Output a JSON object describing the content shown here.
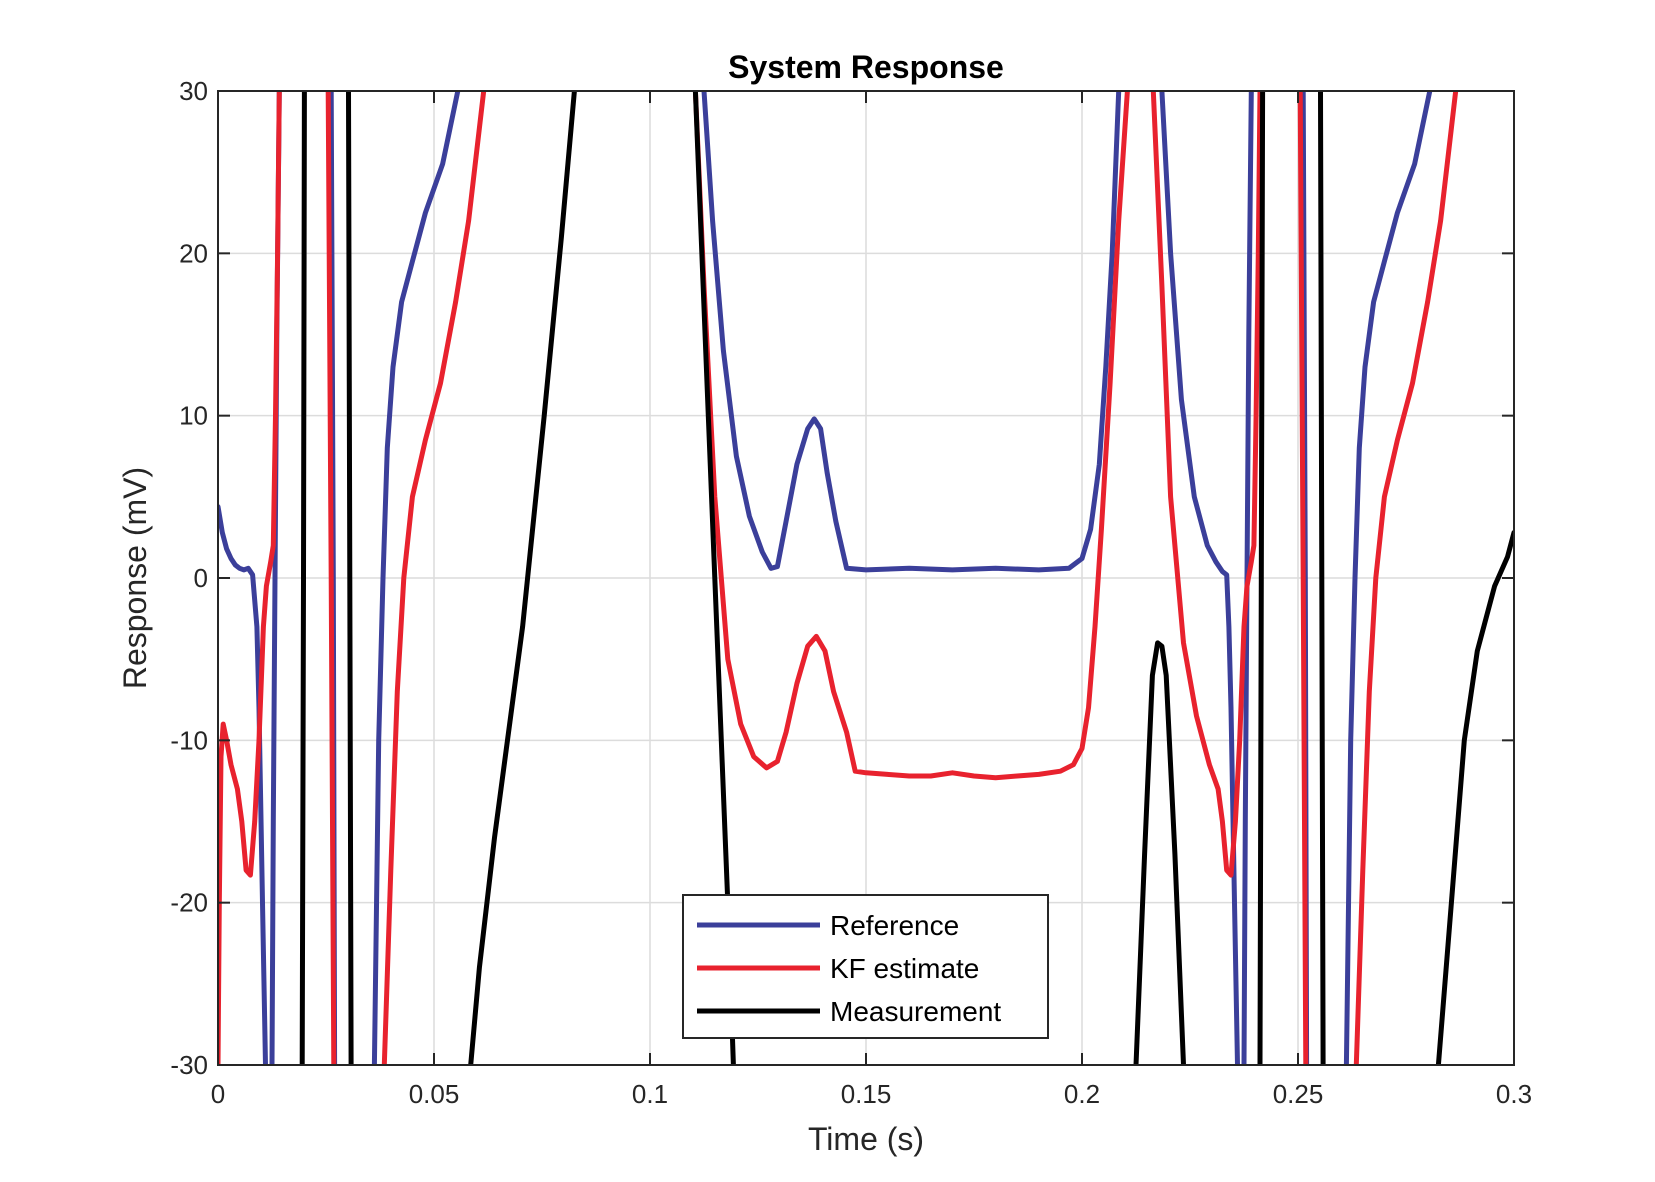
{
  "chart_data": {
    "type": "line",
    "title": "System Response",
    "xlabel": "Time (s)",
    "ylabel": "Response (mV)",
    "xlim": [
      0,
      0.3
    ],
    "ylim": [
      -30,
      30
    ],
    "xticks": [
      0,
      0.05,
      0.1,
      0.15,
      0.2,
      0.25,
      0.3
    ],
    "yticks": [
      -30,
      -20,
      -10,
      0,
      10,
      20,
      30
    ],
    "xtick_labels": [
      "0",
      "0.05",
      "0.1",
      "0.15",
      "0.2",
      "0.25",
      "0.3"
    ],
    "ytick_labels": [
      "-30",
      "-20",
      "-10",
      "0",
      "10",
      "20",
      "30"
    ],
    "grid": true,
    "legend_position": "bottom-center",
    "series": [
      {
        "name": "Reference",
        "color": "#3b3f9a",
        "points": [
          [
            0,
            4.4
          ],
          [
            0.001,
            2.8
          ],
          [
            0.002,
            1.8
          ],
          [
            0.003,
            1.2
          ],
          [
            0.004,
            0.8
          ],
          [
            0.005,
            0.6
          ],
          [
            0.006,
            0.5
          ],
          [
            0.007,
            0.6
          ],
          [
            0.008,
            0.2
          ],
          [
            0.009,
            -3
          ],
          [
            0.0095,
            -8
          ],
          [
            0.0103,
            -20
          ],
          [
            0.011,
            -30
          ],
          [
            0.011,
            -40
          ],
          [
            0.0125,
            -40
          ],
          [
            0.0125,
            -30
          ],
          [
            0.0128,
            -15
          ],
          [
            0.0132,
            0
          ],
          [
            0.0136,
            15
          ],
          [
            0.0142,
            30
          ],
          [
            0.0142,
            40
          ],
          [
            0.0262,
            40
          ],
          [
            0.0262,
            30
          ],
          [
            0.0267,
            0
          ],
          [
            0.027,
            -30
          ],
          [
            0.027,
            -40
          ],
          [
            0.0362,
            -40
          ],
          [
            0.0362,
            -30
          ],
          [
            0.0372,
            -10
          ],
          [
            0.0382,
            0
          ],
          [
            0.0392,
            8
          ],
          [
            0.0405,
            13
          ],
          [
            0.0425,
            17
          ],
          [
            0.045,
            19.5
          ],
          [
            0.048,
            22.5
          ],
          [
            0.052,
            25.5
          ],
          [
            0.0555,
            30
          ],
          [
            0.0555,
            40
          ],
          [
            0.1125,
            40
          ],
          [
            0.1125,
            30
          ],
          [
            0.1145,
            22
          ],
          [
            0.117,
            14
          ],
          [
            0.12,
            7.5
          ],
          [
            0.123,
            3.8
          ],
          [
            0.126,
            1.6
          ],
          [
            0.128,
            0.6
          ],
          [
            0.1295,
            0.7
          ],
          [
            0.1315,
            3.5
          ],
          [
            0.134,
            7
          ],
          [
            0.1365,
            9.2
          ],
          [
            0.138,
            9.8
          ],
          [
            0.1395,
            9.2
          ],
          [
            0.141,
            6.5
          ],
          [
            0.143,
            3.5
          ],
          [
            0.1455,
            0.6
          ],
          [
            0.15,
            0.5
          ],
          [
            0.16,
            0.6
          ],
          [
            0.17,
            0.5
          ],
          [
            0.18,
            0.6
          ],
          [
            0.19,
            0.5
          ],
          [
            0.197,
            0.6
          ],
          [
            0.2,
            1.2
          ],
          [
            0.202,
            3
          ],
          [
            0.204,
            7
          ],
          [
            0.2055,
            13
          ],
          [
            0.207,
            20
          ],
          [
            0.2085,
            30
          ],
          [
            0.2085,
            40
          ],
          [
            0.2185,
            40
          ],
          [
            0.2185,
            30
          ],
          [
            0.2205,
            20
          ],
          [
            0.223,
            11
          ],
          [
            0.226,
            5
          ],
          [
            0.229,
            2
          ],
          [
            0.231,
            1
          ],
          [
            0.2325,
            0.4
          ],
          [
            0.2335,
            0.2
          ],
          [
            0.234,
            -3
          ],
          [
            0.2345,
            -8
          ],
          [
            0.2353,
            -20
          ],
          [
            0.236,
            -30
          ],
          [
            0.236,
            -40
          ],
          [
            0.2375,
            -40
          ],
          [
            0.2375,
            -30
          ],
          [
            0.2378,
            -15
          ],
          [
            0.2382,
            0
          ],
          [
            0.2386,
            15
          ],
          [
            0.2392,
            30
          ],
          [
            0.2392,
            40
          ],
          [
            0.2512,
            40
          ],
          [
            0.2512,
            30
          ],
          [
            0.2517,
            0
          ],
          [
            0.252,
            -30
          ],
          [
            0.252,
            -40
          ],
          [
            0.2612,
            -40
          ],
          [
            0.2612,
            -30
          ],
          [
            0.2622,
            -10
          ],
          [
            0.2632,
            0
          ],
          [
            0.2642,
            8
          ],
          [
            0.2655,
            13
          ],
          [
            0.2675,
            17
          ],
          [
            0.27,
            19.5
          ],
          [
            0.273,
            22.5
          ],
          [
            0.277,
            25.5
          ],
          [
            0.2805,
            30
          ],
          [
            0.2805,
            40
          ]
        ]
      },
      {
        "name": "KF estimate",
        "color": "#e8222e",
        "points": [
          [
            0,
            -30
          ],
          [
            0.0003,
            -20
          ],
          [
            0.0007,
            -11
          ],
          [
            0.0012,
            -9
          ],
          [
            0.002,
            -10
          ],
          [
            0.003,
            -11.5
          ],
          [
            0.0045,
            -13
          ],
          [
            0.0055,
            -15
          ],
          [
            0.0065,
            -18
          ],
          [
            0.0075,
            -18.3
          ],
          [
            0.0085,
            -15
          ],
          [
            0.0095,
            -10
          ],
          [
            0.0105,
            -3
          ],
          [
            0.0112,
            -0.5
          ],
          [
            0.0122,
            1
          ],
          [
            0.0128,
            2
          ],
          [
            0.0133,
            10
          ],
          [
            0.0138,
            20
          ],
          [
            0.0142,
            30
          ],
          [
            0.0142,
            40
          ],
          [
            0.0255,
            40
          ],
          [
            0.0255,
            30
          ],
          [
            0.0262,
            0
          ],
          [
            0.0268,
            -30
          ],
          [
            0.0268,
            -40
          ],
          [
            0.0385,
            -40
          ],
          [
            0.0385,
            -30
          ],
          [
            0.04,
            -18
          ],
          [
            0.0415,
            -7
          ],
          [
            0.043,
            0
          ],
          [
            0.045,
            5
          ],
          [
            0.048,
            8.5
          ],
          [
            0.0515,
            12
          ],
          [
            0.055,
            17
          ],
          [
            0.058,
            22
          ],
          [
            0.0615,
            30
          ],
          [
            0.0615,
            40
          ],
          [
            0.1105,
            40
          ],
          [
            0.1105,
            30
          ],
          [
            0.1125,
            18
          ],
          [
            0.115,
            5
          ],
          [
            0.118,
            -5
          ],
          [
            0.121,
            -9
          ],
          [
            0.124,
            -11
          ],
          [
            0.127,
            -11.7
          ],
          [
            0.1295,
            -11.3
          ],
          [
            0.1315,
            -9.5
          ],
          [
            0.134,
            -6.5
          ],
          [
            0.1365,
            -4.2
          ],
          [
            0.1385,
            -3.6
          ],
          [
            0.1405,
            -4.5
          ],
          [
            0.1425,
            -7
          ],
          [
            0.1455,
            -9.5
          ],
          [
            0.1475,
            -11.9
          ],
          [
            0.15,
            -12
          ],
          [
            0.155,
            -12.1
          ],
          [
            0.16,
            -12.2
          ],
          [
            0.165,
            -12.2
          ],
          [
            0.17,
            -12
          ],
          [
            0.175,
            -12.2
          ],
          [
            0.18,
            -12.3
          ],
          [
            0.185,
            -12.2
          ],
          [
            0.19,
            -12.1
          ],
          [
            0.195,
            -11.9
          ],
          [
            0.198,
            -11.5
          ],
          [
            0.2,
            -10.5
          ],
          [
            0.2015,
            -8
          ],
          [
            0.203,
            -3
          ],
          [
            0.2045,
            3
          ],
          [
            0.2065,
            12
          ],
          [
            0.2085,
            22
          ],
          [
            0.2105,
            30
          ],
          [
            0.2105,
            40
          ],
          [
            0.2165,
            40
          ],
          [
            0.2165,
            30
          ],
          [
            0.2185,
            18
          ],
          [
            0.2205,
            5
          ],
          [
            0.2235,
            -4
          ],
          [
            0.2265,
            -8.5
          ],
          [
            0.2295,
            -11.5
          ],
          [
            0.2315,
            -13
          ],
          [
            0.2325,
            -15
          ],
          [
            0.2335,
            -18
          ],
          [
            0.2345,
            -18.3
          ],
          [
            0.2355,
            -15
          ],
          [
            0.2365,
            -10
          ],
          [
            0.2375,
            -3
          ],
          [
            0.2382,
            -0.5
          ],
          [
            0.2392,
            1
          ],
          [
            0.2398,
            2
          ],
          [
            0.2403,
            10
          ],
          [
            0.2408,
            20
          ],
          [
            0.2412,
            30
          ],
          [
            0.2412,
            40
          ],
          [
            0.2505,
            40
          ],
          [
            0.2505,
            30
          ],
          [
            0.2512,
            0
          ],
          [
            0.2518,
            -30
          ],
          [
            0.2518,
            -40
          ],
          [
            0.2635,
            -40
          ],
          [
            0.2635,
            -30
          ],
          [
            0.265,
            -18
          ],
          [
            0.2665,
            -7
          ],
          [
            0.268,
            0
          ],
          [
            0.27,
            5
          ],
          [
            0.273,
            8.5
          ],
          [
            0.2765,
            12
          ],
          [
            0.28,
            17
          ],
          [
            0.283,
            22
          ],
          [
            0.2865,
            30
          ],
          [
            0.2865,
            40
          ]
        ]
      },
      {
        "name": "Measurement",
        "color": "#000000",
        "points": [
          [
            0.0195,
            -40
          ],
          [
            0.0195,
            -30
          ],
          [
            0.0198,
            0
          ],
          [
            0.02,
            30
          ],
          [
            0.02,
            40
          ],
          [
            0.0302,
            40
          ],
          [
            0.0302,
            30
          ],
          [
            0.0305,
            0
          ],
          [
            0.0308,
            -30
          ],
          [
            0.0308,
            -40
          ],
          [
            0.0585,
            -40
          ],
          [
            0.0585,
            -30
          ],
          [
            0.0605,
            -24
          ],
          [
            0.064,
            -16
          ],
          [
            0.0705,
            -3
          ],
          [
            0.0755,
            10
          ],
          [
            0.0795,
            21
          ],
          [
            0.0825,
            30
          ],
          [
            0.0825,
            40
          ],
          [
            0.1105,
            40
          ],
          [
            0.1105,
            30
          ],
          [
            0.1135,
            10
          ],
          [
            0.1165,
            -10
          ],
          [
            0.118,
            -20
          ],
          [
            0.1193,
            -30
          ],
          [
            0.1193,
            -40
          ],
          [
            0.2125,
            -40
          ],
          [
            0.2125,
            -30
          ],
          [
            0.2145,
            -17
          ],
          [
            0.2163,
            -6
          ],
          [
            0.2175,
            -4
          ],
          [
            0.2185,
            -4.2
          ],
          [
            0.2195,
            -6
          ],
          [
            0.2215,
            -17
          ],
          [
            0.2235,
            -30
          ],
          [
            0.2235,
            -40
          ],
          [
            0.2412,
            -40
          ],
          [
            0.2412,
            -30
          ],
          [
            0.2415,
            0
          ],
          [
            0.2418,
            30
          ],
          [
            0.2418,
            40
          ],
          [
            0.2552,
            40
          ],
          [
            0.2552,
            30
          ],
          [
            0.2555,
            0
          ],
          [
            0.2558,
            -30
          ],
          [
            0.2558,
            -40
          ],
          [
            0.2825,
            -40
          ],
          [
            0.2825,
            -30
          ],
          [
            0.2855,
            -20
          ],
          [
            0.2885,
            -10
          ],
          [
            0.2915,
            -4.5
          ],
          [
            0.2955,
            -0.5
          ],
          [
            0.2985,
            1.3
          ],
          [
            0.3,
            2.8
          ]
        ]
      }
    ]
  }
}
